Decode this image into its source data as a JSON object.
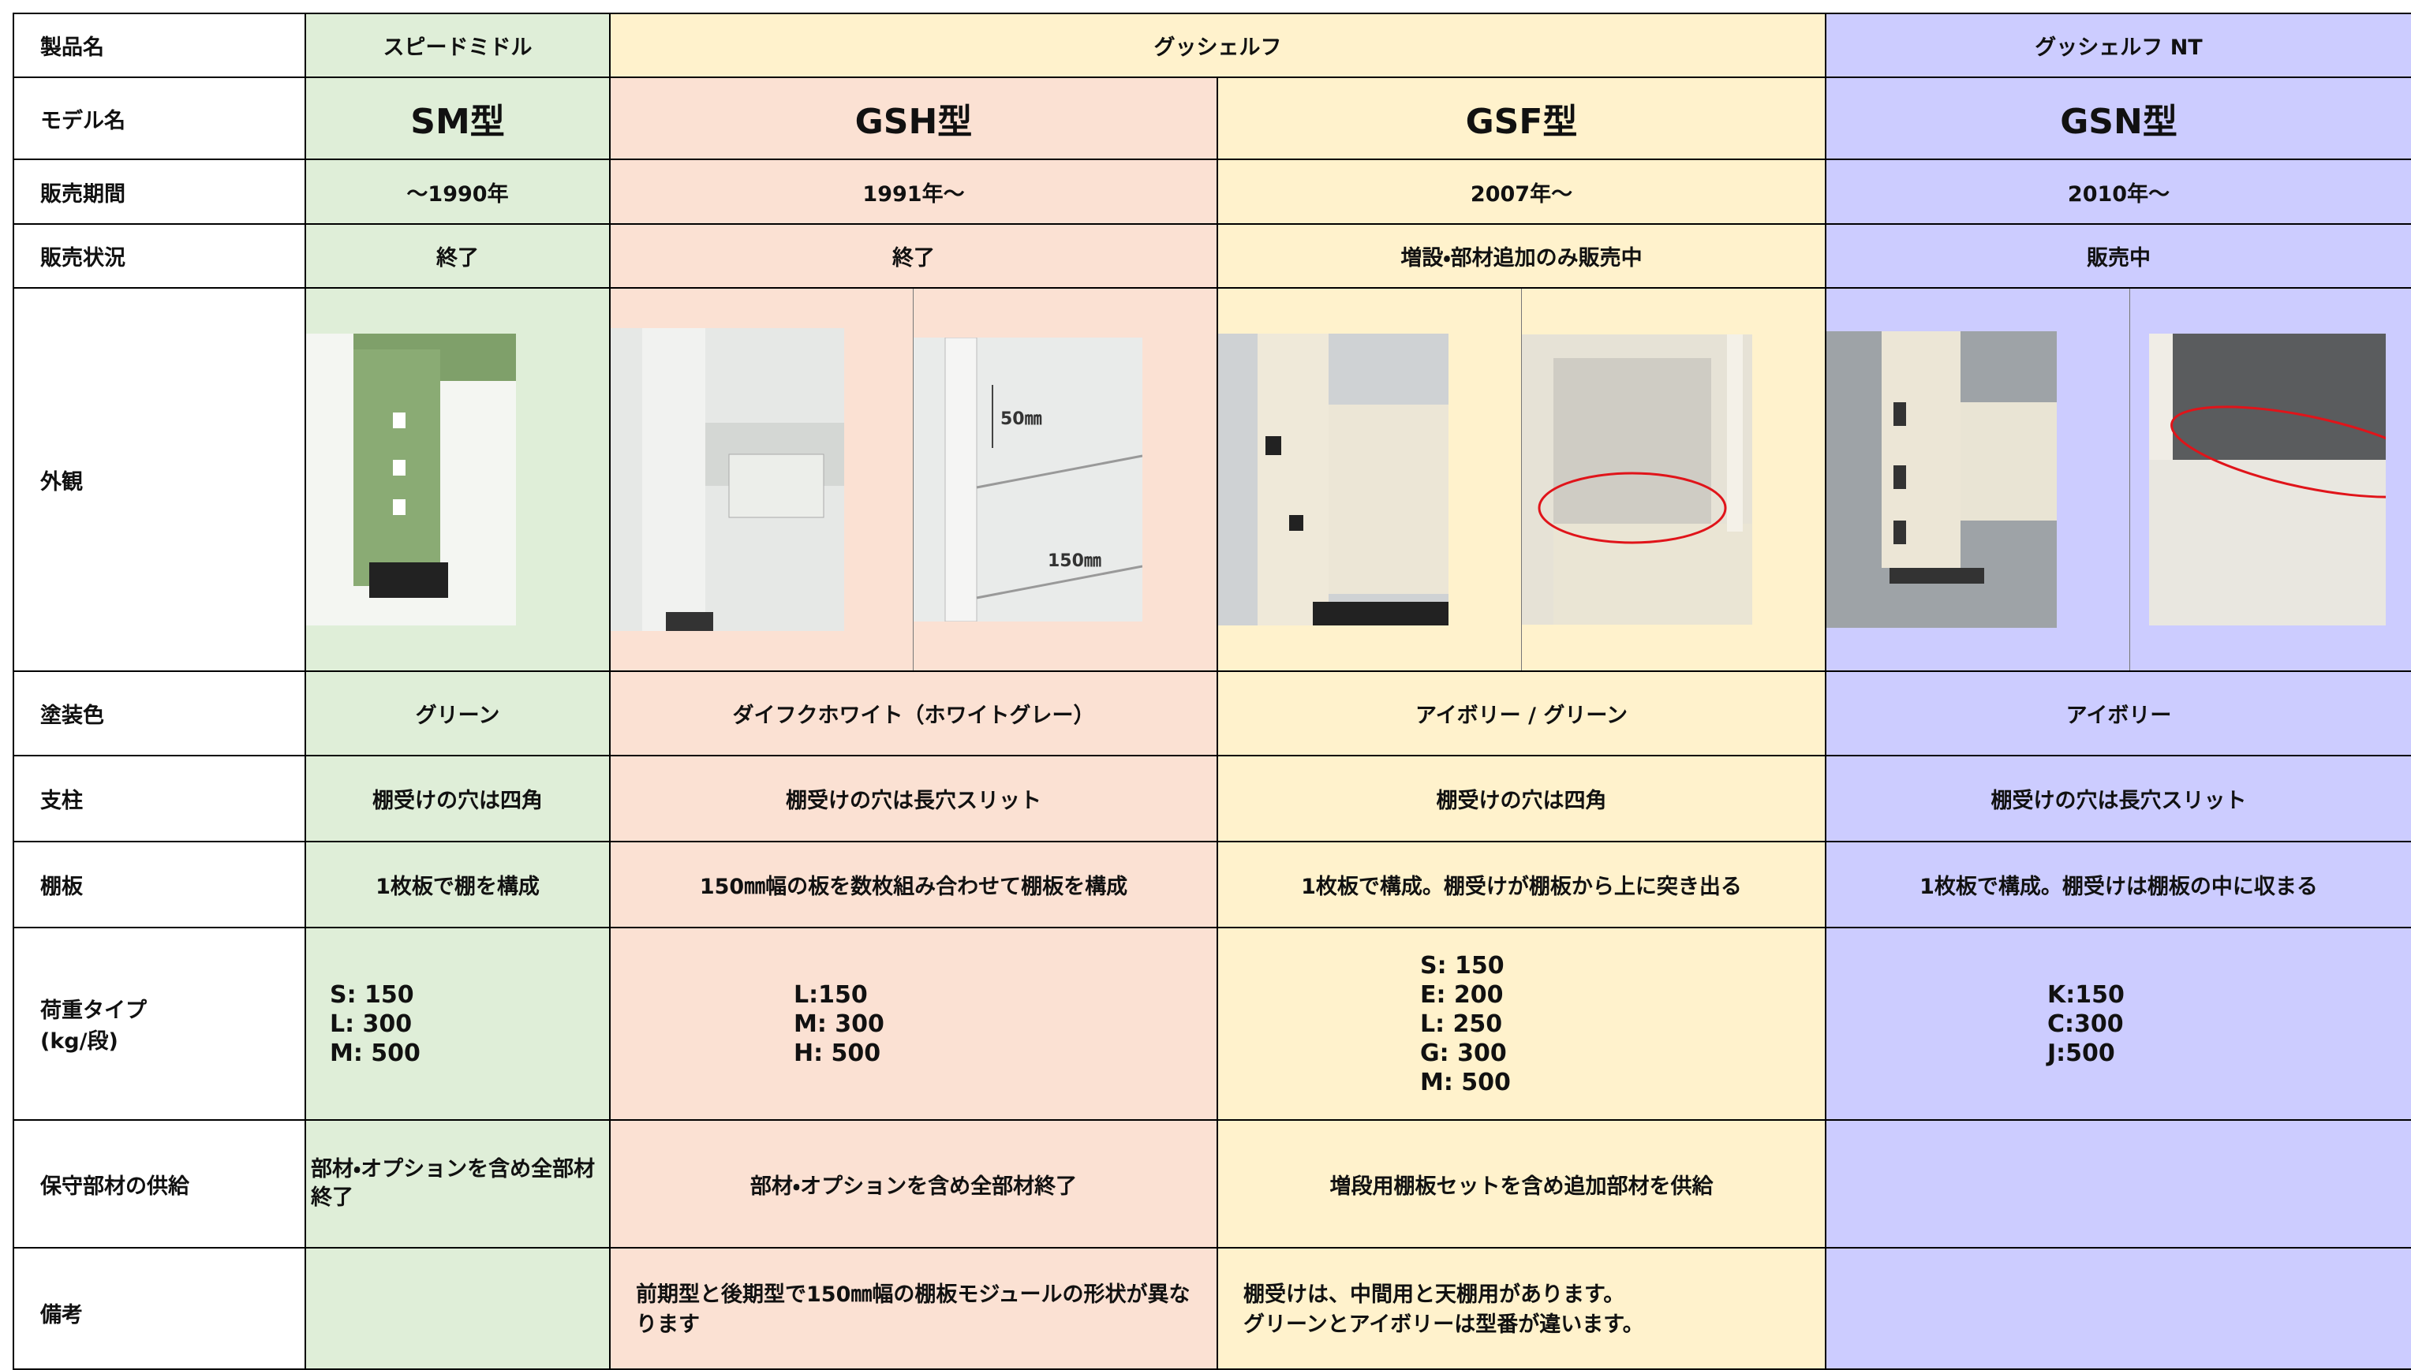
{
  "table": {
    "row_labels": [
      "製品名",
      "モデル名",
      "販売期間",
      "販売状況",
      "外観",
      "塗装色",
      "支柱",
      "棚板",
      "荷重タイプ",
      "(kg/段)",
      "保守部材の供給",
      "備考"
    ],
    "product_names": [
      "スピードミドル",
      "グッシェルフ",
      "グッシェルフ NT"
    ],
    "models": [
      "SM型",
      "GSH型",
      "GSF型",
      "GSN型"
    ],
    "periods": [
      "～1990年",
      "1991年～",
      "2007年～",
      "2010年～"
    ],
    "status": [
      "終了",
      "終了",
      "増設・部材追加のみ販売中",
      "販売中"
    ],
    "paint": [
      "グリーン",
      "ダイフクホワイト（ホワイトグレー）",
      "アイボリー / グリーン",
      "アイボリー"
    ],
    "posts": [
      "棚受けの穴は四角",
      "棚受けの穴は長穴スリット",
      "棚受けの穴は四角",
      "棚受けの穴は長穴スリット"
    ],
    "shelves": [
      "1枚板で棚を構成",
      "150㎜幅の板を数枚組み合わせて棚板を構成",
      "1枚板で構成。棚受けが棚板から上に突き出る",
      "1枚板で構成。棚受けは棚板の中に収まる"
    ],
    "loads": [
      [
        "S: 150",
        "L: 300",
        "M: 500"
      ],
      [
        "L:150",
        "M: 300",
        "H: 500"
      ],
      [
        "S: 150",
        "E: 200",
        "L: 250",
        "G: 300",
        "M: 500"
      ],
      [
        "K:150",
        "C:300",
        "J:500"
      ]
    ],
    "maintenance": [
      "部材・オプションを含め全部材終了",
      "部材・オプションを含め全部材終了",
      "増段用棚板セットを含め追加部材を供給"
    ],
    "notes_gsh": "前期型と後期型で150㎜幅の棚板モジュールの形状が異なります",
    "notes_gsf": [
      "棚受けは、中間用と天棚用があります。",
      "グリーンとアイボリーは型番が違います。"
    ],
    "photo_labels": [
      "50㎜",
      "150㎜"
    ]
  }
}
